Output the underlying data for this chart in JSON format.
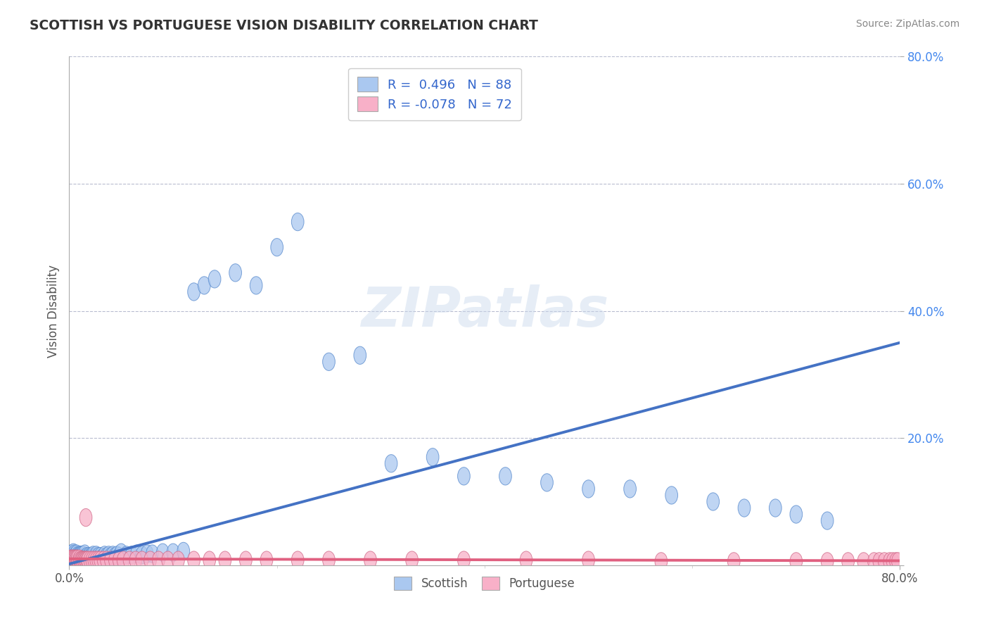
{
  "title": "SCOTTISH VS PORTUGUESE VISION DISABILITY CORRELATION CHART",
  "source": "Source: ZipAtlas.com",
  "ylabel": "Vision Disability",
  "xlim": [
    0.0,
    0.8
  ],
  "ylim": [
    0.0,
    0.8
  ],
  "scottish_R": 0.496,
  "scottish_N": 88,
  "portuguese_R": -0.078,
  "portuguese_N": 72,
  "scottish_color": "#aac8f0",
  "scottish_edge_color": "#5588cc",
  "scottish_line_color": "#4472c4",
  "portuguese_color": "#f8b0c8",
  "portuguese_edge_color": "#d06888",
  "portuguese_line_color": "#e06080",
  "background_color": "#ffffff",
  "grid_color": "#b8bcd0",
  "watermark": "ZIPatlas",
  "scottish_x": [
    0.001,
    0.001,
    0.002,
    0.002,
    0.002,
    0.003,
    0.003,
    0.003,
    0.004,
    0.004,
    0.004,
    0.005,
    0.005,
    0.005,
    0.006,
    0.006,
    0.006,
    0.007,
    0.007,
    0.007,
    0.008,
    0.008,
    0.009,
    0.009,
    0.01,
    0.01,
    0.011,
    0.011,
    0.012,
    0.012,
    0.013,
    0.013,
    0.014,
    0.015,
    0.015,
    0.016,
    0.017,
    0.018,
    0.019,
    0.02,
    0.021,
    0.022,
    0.023,
    0.025,
    0.026,
    0.028,
    0.03,
    0.032,
    0.034,
    0.036,
    0.038,
    0.04,
    0.042,
    0.044,
    0.046,
    0.048,
    0.05,
    0.055,
    0.06,
    0.065,
    0.07,
    0.075,
    0.08,
    0.09,
    0.1,
    0.11,
    0.12,
    0.13,
    0.14,
    0.16,
    0.18,
    0.2,
    0.22,
    0.25,
    0.28,
    0.31,
    0.35,
    0.38,
    0.42,
    0.46,
    0.5,
    0.54,
    0.58,
    0.62,
    0.65,
    0.68,
    0.7,
    0.73
  ],
  "scottish_y": [
    0.005,
    0.01,
    0.008,
    0.012,
    0.018,
    0.006,
    0.01,
    0.015,
    0.008,
    0.012,
    0.02,
    0.008,
    0.013,
    0.018,
    0.006,
    0.012,
    0.016,
    0.008,
    0.013,
    0.018,
    0.008,
    0.015,
    0.008,
    0.014,
    0.01,
    0.016,
    0.01,
    0.016,
    0.01,
    0.016,
    0.01,
    0.016,
    0.012,
    0.01,
    0.018,
    0.012,
    0.014,
    0.012,
    0.014,
    0.012,
    0.014,
    0.012,
    0.016,
    0.012,
    0.016,
    0.014,
    0.014,
    0.012,
    0.016,
    0.014,
    0.016,
    0.014,
    0.016,
    0.014,
    0.016,
    0.014,
    0.02,
    0.016,
    0.016,
    0.018,
    0.016,
    0.018,
    0.018,
    0.02,
    0.02,
    0.022,
    0.43,
    0.44,
    0.45,
    0.46,
    0.44,
    0.5,
    0.54,
    0.32,
    0.33,
    0.16,
    0.17,
    0.14,
    0.14,
    0.13,
    0.12,
    0.12,
    0.11,
    0.1,
    0.09,
    0.09,
    0.08,
    0.07
  ],
  "portuguese_x": [
    0.001,
    0.001,
    0.002,
    0.002,
    0.003,
    0.003,
    0.004,
    0.004,
    0.005,
    0.005,
    0.006,
    0.006,
    0.007,
    0.007,
    0.008,
    0.008,
    0.009,
    0.01,
    0.01,
    0.011,
    0.012,
    0.013,
    0.014,
    0.015,
    0.016,
    0.016,
    0.017,
    0.018,
    0.02,
    0.022,
    0.024,
    0.026,
    0.028,
    0.03,
    0.033,
    0.036,
    0.04,
    0.044,
    0.048,
    0.052,
    0.058,
    0.064,
    0.07,
    0.078,
    0.086,
    0.095,
    0.105,
    0.12,
    0.135,
    0.15,
    0.17,
    0.19,
    0.22,
    0.25,
    0.29,
    0.33,
    0.38,
    0.44,
    0.5,
    0.57,
    0.64,
    0.7,
    0.73,
    0.75,
    0.765,
    0.775,
    0.78,
    0.785,
    0.79,
    0.793,
    0.796,
    0.798
  ],
  "portuguese_y": [
    0.006,
    0.01,
    0.006,
    0.01,
    0.006,
    0.01,
    0.006,
    0.01,
    0.006,
    0.01,
    0.006,
    0.01,
    0.006,
    0.01,
    0.006,
    0.01,
    0.006,
    0.008,
    0.01,
    0.008,
    0.008,
    0.008,
    0.008,
    0.008,
    0.008,
    0.075,
    0.008,
    0.008,
    0.008,
    0.008,
    0.008,
    0.008,
    0.008,
    0.008,
    0.008,
    0.008,
    0.008,
    0.008,
    0.008,
    0.008,
    0.008,
    0.008,
    0.008,
    0.008,
    0.008,
    0.008,
    0.008,
    0.008,
    0.008,
    0.008,
    0.008,
    0.008,
    0.008,
    0.008,
    0.008,
    0.008,
    0.008,
    0.008,
    0.008,
    0.006,
    0.006,
    0.006,
    0.006,
    0.006,
    0.006,
    0.006,
    0.006,
    0.006,
    0.006,
    0.006,
    0.006,
    0.006
  ],
  "line_sc_x0": 0.0,
  "line_sc_x1": 0.8,
  "line_sc_y0": 0.002,
  "line_sc_y1": 0.35,
  "line_pt_x0": 0.0,
  "line_pt_x1": 0.8,
  "line_pt_y0": 0.01,
  "line_pt_y1": 0.007
}
